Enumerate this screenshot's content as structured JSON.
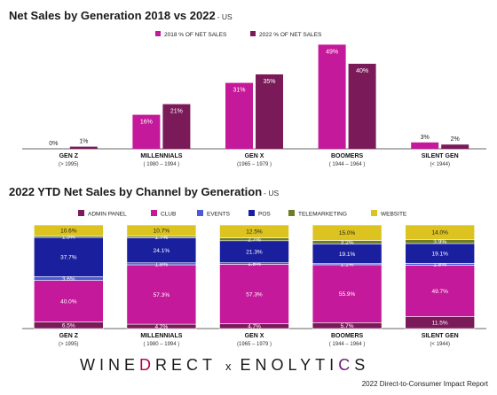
{
  "chart_data": [
    {
      "type": "bar",
      "title": "Net Sales by Generation 2018 vs 2022",
      "subtitle": "- US",
      "categories": [
        "GEN Z",
        "MILLENNIALS",
        "GEN X",
        "BOOMERS",
        "SILENT GEN"
      ],
      "category_sublabels": [
        "(> 1995)",
        "( 1980 – 1994 )",
        "(1965 – 1979 )",
        "( 1944 – 1964 )",
        "(< 1944)"
      ],
      "series": [
        {
          "name": "2018 % OF NET SALES",
          "color": "#c4199a",
          "values": [
            0,
            16,
            31,
            49,
            3
          ],
          "labels": [
            "0%",
            "16%",
            "31%",
            "49%",
            "3%"
          ]
        },
        {
          "name": "2022 % OF NET SALES",
          "color": "#7a1a59",
          "values": [
            1,
            21,
            35,
            40,
            2
          ],
          "labels": [
            "1%",
            "21%",
            "35%",
            "40%",
            "2%"
          ]
        }
      ],
      "ylim": [
        0,
        50
      ],
      "legend_position": "top-right",
      "grid": false
    },
    {
      "type": "bar",
      "stacked": true,
      "title": "2022 YTD Net Sales by Channel by Generation",
      "subtitle": "- US",
      "categories": [
        "GEN Z",
        "MILLENNIALS",
        "GEN X",
        "BOOMERS",
        "SILENT GEN"
      ],
      "category_sublabels": [
        "(> 1995)",
        "( 1980 – 1994 )",
        "(1965 – 1979 )",
        "( 1944 – 1964 )",
        "(< 1944)"
      ],
      "series": [
        {
          "name": "ADMIN PANEL",
          "color": "#7a1a59",
          "values": [
            6.5,
            4.2,
            4.7,
            5.7,
            11.5
          ],
          "labels": [
            "6.5%",
            "4.2%",
            "4.7%",
            "5.7%",
            "11.5%"
          ]
        },
        {
          "name": "CLUB",
          "color": "#c4199a",
          "values": [
            40.0,
            57.3,
            57.3,
            55.9,
            49.7
          ],
          "labels": [
            "40.0%",
            "57.3%",
            "57.3%",
            "55.9%",
            "49.7%"
          ]
        },
        {
          "name": "EVENTS",
          "color": "#4a5bd4",
          "values": [
            3.6,
            1.9,
            1.5,
            1.1,
            1.8
          ],
          "labels": [
            "3.6%",
            "1.9%",
            "1.5%",
            "1.1%",
            "1.8%"
          ]
        },
        {
          "name": "POS",
          "color": "#1a1f9e",
          "values": [
            37.7,
            24.1,
            21.3,
            19.1,
            19.1
          ],
          "labels": [
            "37.7%",
            "24.1%",
            "21.3%",
            "19.1%",
            "19.1%"
          ]
        },
        {
          "name": "TELEMARKETING",
          "color": "#6e7d26",
          "values": [
            1.5,
            1.7,
            2.7,
            3.2,
            3.9
          ],
          "labels": [
            "1.5%",
            "1.7%",
            "2.7%",
            "3.2%",
            "3.9%"
          ]
        },
        {
          "name": "WEBSITE",
          "color": "#dcc31f",
          "values": [
            10.6,
            10.7,
            12.5,
            15.0,
            14.0
          ],
          "labels": [
            "10.6%",
            "10.7%",
            "12.5%",
            "15.0%",
            "14.0%"
          ]
        }
      ],
      "ylim": [
        0,
        100
      ],
      "legend_position": "top",
      "grid": false
    }
  ],
  "footer": {
    "brand_left_a": "WINE",
    "brand_left_b": "D",
    "brand_left_c": "RECT",
    "separator": "x",
    "brand_right_a": "ENOLYTI",
    "brand_right_b": "C",
    "brand_right_c": "S",
    "note": "2022 Direct-to-Consumer Impact Report"
  }
}
